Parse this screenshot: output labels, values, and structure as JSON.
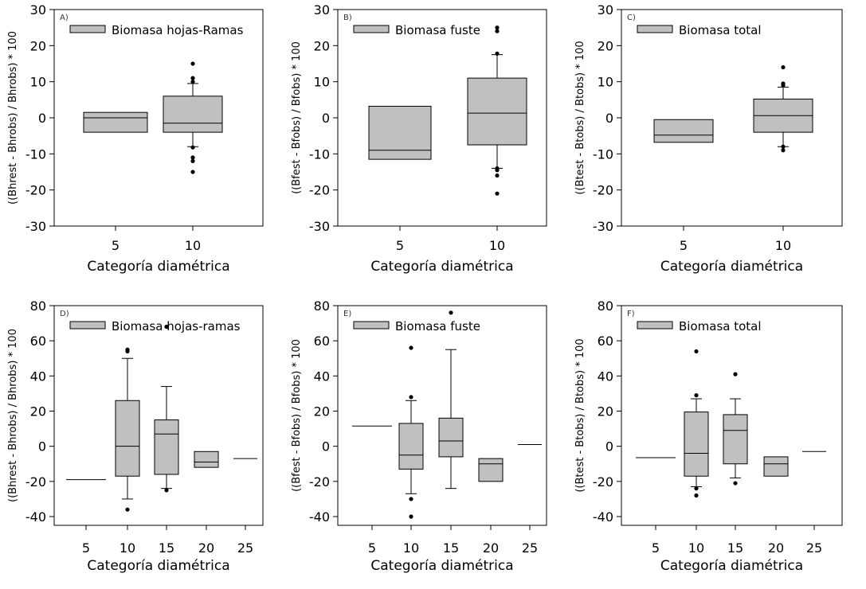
{
  "chart_data": [
    {
      "type": "box",
      "panel_label": "A)",
      "title": "",
      "legend": "Biomasa hojas-Ramas",
      "xlabel": "Categoría diamétrica",
      "ylabel": "((Bhrest - Bhrobs) / Bhrobs) * 100",
      "ylim": [
        -30,
        30
      ],
      "yticks": [
        30,
        20,
        10,
        0,
        -10,
        -20,
        -30
      ],
      "categories": [
        "5",
        "10"
      ],
      "boxes": [
        {
          "category": "5",
          "q1": -4,
          "median": 0,
          "q3": 1.5,
          "whisker_low": null,
          "whisker_high": null,
          "outliers": []
        },
        {
          "category": "10",
          "q1": -4,
          "median": -1.5,
          "q3": 6,
          "whisker_low": -8,
          "whisker_high": 9.5,
          "outliers": [
            15,
            11,
            10,
            -8.2,
            -11,
            -12,
            -15
          ]
        }
      ]
    },
    {
      "type": "box",
      "panel_label": "B)",
      "title": "",
      "legend": "Biomasa fuste",
      "xlabel": "Categoría diamétrica",
      "ylabel": "((Bfest - Bfobs) / Bfobs) * 100",
      "ylim": [
        -30,
        30
      ],
      "yticks": [
        30,
        20,
        10,
        0,
        -10,
        -20,
        -30
      ],
      "categories": [
        "5",
        "10"
      ],
      "boxes": [
        {
          "category": "5",
          "q1": -11.5,
          "median": -9,
          "q3": 3.2,
          "whisker_low": null,
          "whisker_high": null,
          "outliers": []
        },
        {
          "category": "10",
          "q1": -7.5,
          "median": 1.3,
          "q3": 11,
          "whisker_low": -14,
          "whisker_high": 17.5,
          "outliers": [
            25,
            24,
            17.8,
            -14,
            -14.5,
            -16,
            -21
          ]
        }
      ]
    },
    {
      "type": "box",
      "panel_label": "C)",
      "title": "",
      "legend": "Biomasa total",
      "xlabel": "Categoría diamétrica",
      "ylabel": "((Btest - Btobs) / Btobs) * 100",
      "ylim": [
        -30,
        30
      ],
      "yticks": [
        30,
        20,
        10,
        0,
        -10,
        -20,
        -30
      ],
      "categories": [
        "5",
        "10"
      ],
      "boxes": [
        {
          "category": "5",
          "q1": -6.8,
          "median": -4.8,
          "q3": -0.5,
          "whisker_low": null,
          "whisker_high": null,
          "outliers": []
        },
        {
          "category": "10",
          "q1": -4,
          "median": 0.6,
          "q3": 5.2,
          "whisker_low": -8,
          "whisker_high": 8.5,
          "outliers": [
            14,
            9.5,
            9,
            -8,
            -9
          ]
        }
      ]
    },
    {
      "type": "box",
      "panel_label": "D)",
      "title": "",
      "legend": "Biomasa hojas-ramas",
      "xlabel": "Categoría diamétrica",
      "ylabel": "((Bhrest - Bhrobs) / Bhrobs) * 100",
      "ylim": [
        -45,
        80
      ],
      "yticks": [
        80,
        60,
        40,
        20,
        0,
        -20,
        -40
      ],
      "categories": [
        "5",
        "10",
        "15",
        "20",
        "25"
      ],
      "boxes": [
        {
          "category": "5",
          "q1": -19,
          "median": -19,
          "q3": -19,
          "whisker_low": null,
          "whisker_high": null,
          "outliers": []
        },
        {
          "category": "10",
          "q1": -17,
          "median": 0,
          "q3": 26,
          "whisker_low": -30,
          "whisker_high": 50,
          "outliers": [
            55,
            54,
            -36
          ]
        },
        {
          "category": "15",
          "q1": -16,
          "median": 7,
          "q3": 15,
          "whisker_low": -24,
          "whisker_high": 34,
          "outliers": [
            68,
            -25
          ]
        },
        {
          "category": "20",
          "q1": -12,
          "median": -9,
          "q3": -3,
          "whisker_low": null,
          "whisker_high": null,
          "outliers": []
        },
        {
          "category": "25",
          "q1": -7,
          "median": -7,
          "q3": -7,
          "whisker_low": null,
          "whisker_high": null,
          "outliers": []
        }
      ]
    },
    {
      "type": "box",
      "panel_label": "E)",
      "title": "",
      "legend": "Biomasa fuste",
      "xlabel": "Categoría diamétrica",
      "ylabel": "((Bfest - Bfobs) / Bfobs) * 100",
      "ylim": [
        -45,
        80
      ],
      "yticks": [
        80,
        60,
        40,
        20,
        0,
        -20,
        -40
      ],
      "categories": [
        "5",
        "10",
        "15",
        "20",
        "25"
      ],
      "boxes": [
        {
          "category": "5",
          "q1": 11.5,
          "median": 11.5,
          "q3": 11.5,
          "whisker_low": null,
          "whisker_high": null,
          "outliers": []
        },
        {
          "category": "10",
          "q1": -13,
          "median": -5,
          "q3": 13,
          "whisker_low": -27,
          "whisker_high": 26,
          "outliers": [
            56,
            28,
            -30,
            -40
          ]
        },
        {
          "category": "15",
          "q1": -6,
          "median": 3,
          "q3": 16,
          "whisker_low": -24,
          "whisker_high": 55,
          "outliers": [
            76
          ]
        },
        {
          "category": "20",
          "q1": -20,
          "median": -10,
          "q3": -7,
          "whisker_low": null,
          "whisker_high": null,
          "outliers": []
        },
        {
          "category": "25",
          "q1": 1,
          "median": 1,
          "q3": 1,
          "whisker_low": null,
          "whisker_high": null,
          "outliers": []
        }
      ]
    },
    {
      "type": "box",
      "panel_label": "F)",
      "title": "",
      "legend": "Biomasa total",
      "xlabel": "Categoría diamétrica",
      "ylabel": "((Btest - Btobs) / Btobs) * 100",
      "ylim": [
        -45,
        80
      ],
      "yticks": [
        80,
        60,
        40,
        20,
        0,
        -20,
        -40
      ],
      "categories": [
        "5",
        "10",
        "15",
        "20",
        "25"
      ],
      "boxes": [
        {
          "category": "5",
          "q1": -6.5,
          "median": -6.5,
          "q3": -6.5,
          "whisker_low": null,
          "whisker_high": null,
          "outliers": []
        },
        {
          "category": "10",
          "q1": -17,
          "median": -4,
          "q3": 19.5,
          "whisker_low": -23,
          "whisker_high": 27,
          "outliers": [
            54,
            29,
            -24,
            -28
          ]
        },
        {
          "category": "15",
          "q1": -10,
          "median": 9,
          "q3": 18,
          "whisker_low": -18,
          "whisker_high": 27,
          "outliers": [
            41,
            -21
          ]
        },
        {
          "category": "20",
          "q1": -17,
          "median": -10,
          "q3": -6,
          "whisker_low": null,
          "whisker_high": null,
          "outliers": []
        },
        {
          "category": "25",
          "q1": -3,
          "median": -3,
          "q3": -3,
          "whisker_low": null,
          "whisker_high": null,
          "outliers": []
        }
      ]
    }
  ]
}
